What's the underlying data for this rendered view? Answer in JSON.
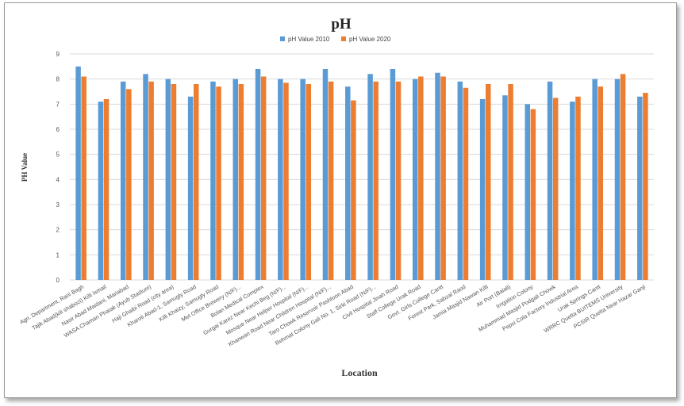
{
  "chart_data": {
    "type": "bar",
    "title": "pH",
    "xlabel": "Location",
    "ylabel": "PH Value",
    "ylim": [
      0,
      9
    ],
    "yticks": [
      0,
      1,
      2,
      3,
      4,
      5,
      6,
      7,
      8,
      9
    ],
    "grid": true,
    "legend_position": "top",
    "categories": [
      "Agri. Department, Rani Bagh",
      "Tajik Abad(kili shabozi) Killi Ismail",
      "Nasir Abad Maidani, Mariabad",
      "WASA Chaman Phatak (Ayub Stadium)",
      "Haji Ghaibi Road (city area)",
      "Kharoti Abad-1, Samugly Road",
      "Killi Khaizy, Samugly Road",
      "Met Office Brewery (N/F)...",
      "Bolan Medical Complex",
      "Gurgai Karez Near Kechi Beg (N/F)...",
      "Mosque Near Helper Hospital (N/F)...",
      "Khanwari Road Near Children Hospital (N/F)...",
      "Taro Chowk Reservoir Pashtoon Abad",
      "Rehmat Colony Gali No. 1, Sirki Road (N/F)...",
      "Civil Hospital Jinah Road",
      "Staff College Urak Road",
      "Govt. Girls College Cantt",
      "Forest Park, Sabzal Raod",
      "Jamia Masjid Nawan Killi",
      "Air Port (Balali)",
      "Irrigation Colony",
      "Muhammad Masjid Podgali Chowk",
      "Pepsi Cola Factory Industrial Area",
      "Urak Springs Cantt",
      "WRRC Quetta BUITEMS University",
      "PCSIR Quetta Near Hazar Ganji"
    ],
    "series": [
      {
        "name": "pH  Value 2010",
        "color": "#5B9BD5",
        "values": [
          8.5,
          7.1,
          7.9,
          8.2,
          8.0,
          7.3,
          7.9,
          8.0,
          8.4,
          8.0,
          8.0,
          8.4,
          7.7,
          8.2,
          8.4,
          8.0,
          8.25,
          7.9,
          7.2,
          7.35,
          7.0,
          7.9,
          7.1,
          8.0,
          8.0,
          7.3
        ]
      },
      {
        "name": "pH  Value 2020",
        "color": "#ED7D31",
        "values": [
          8.1,
          7.2,
          7.6,
          7.9,
          7.8,
          7.8,
          7.7,
          7.8,
          8.1,
          7.85,
          7.8,
          7.9,
          7.15,
          7.9,
          7.9,
          8.1,
          8.1,
          7.65,
          7.8,
          7.8,
          6.8,
          7.25,
          7.3,
          7.7,
          8.2,
          7.45
        ]
      }
    ]
  }
}
